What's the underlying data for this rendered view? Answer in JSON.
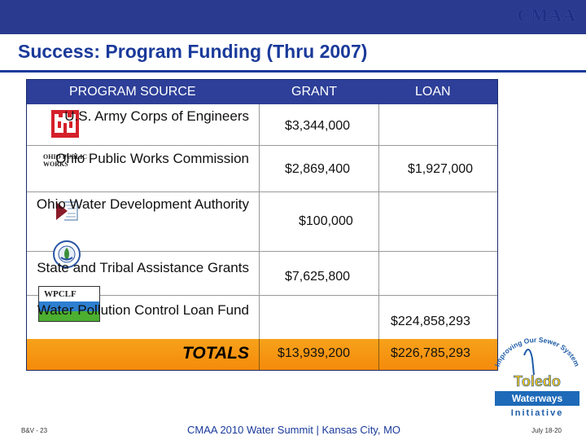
{
  "header": {
    "logo_text": "CMAA",
    "title": "Success: Program Funding (Thru 2007)"
  },
  "table": {
    "columns": [
      "PROGRAM SOURCE",
      "GRANT",
      "LOAN"
    ],
    "rows": [
      {
        "source": "U.S. Army Corps of Engineers",
        "grant": "$3,344,000",
        "loan": "",
        "logo": "army-corps-castle-icon"
      },
      {
        "source": "Ohio Public Works Commission",
        "grant": "$2,869,400",
        "loan": "$1,927,000",
        "logo": "ohio-public-works-logo",
        "logo_text": "OHIO PUBLIC WORKS"
      },
      {
        "source": "Ohio Water Development Authority",
        "grant": "$100,000",
        "loan": "",
        "logo": "owda-logo"
      },
      {
        "source": "State and Tribal Assistance Grants",
        "grant": "$7,625,800",
        "loan": "",
        "logo": "epa-seal-icon"
      },
      {
        "source": "Water Pollution Control Loan Fund",
        "grant": "",
        "loan": "$224,858,293",
        "logo": "wpclf-logo",
        "logo_text": "WPCLF"
      }
    ],
    "totals": {
      "label": "TOTALS",
      "grant": "$13,939,200",
      "loan": "$226,785,293"
    }
  },
  "badge": {
    "arc_text": "Improving Our Sewer System",
    "city": "Toledo",
    "line1": "Waterways",
    "line2": "Initiative"
  },
  "footer": {
    "left": "B&V - 23",
    "center": "CMAA 2010 Water Summit | Kansas City, MO",
    "right": "July 18-20"
  },
  "colors": {
    "header_bar": "#2a3b8f",
    "title": "#1a3a9a",
    "totals_row": "#f7941d"
  }
}
